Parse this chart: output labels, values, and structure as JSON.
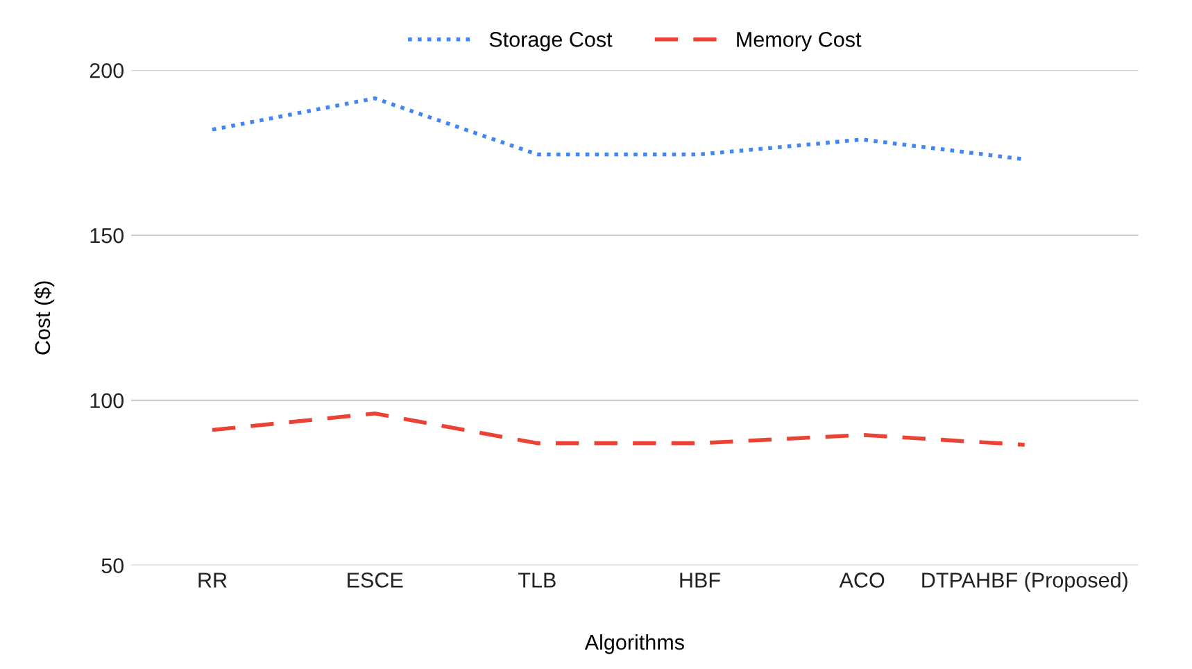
{
  "chart_data": {
    "type": "line",
    "xlabel": "Algorithms",
    "ylabel": "Cost ($)",
    "categories": [
      "RR",
      "ESCE",
      "TLB",
      "HBF",
      "ACO",
      "DTPAHBF (Proposed)"
    ],
    "series": [
      {
        "name": "Storage Cost",
        "color": "#4285f4",
        "line_style": "dotted",
        "values": [
          182,
          191.5,
          174.5,
          174.5,
          179,
          173
        ]
      },
      {
        "name": "Memory Cost",
        "color": "#ea4335",
        "line_style": "dashed",
        "values": [
          91,
          96,
          87,
          87,
          89.5,
          86.5
        ]
      }
    ],
    "ylim": [
      50,
      200
    ],
    "yticks": [
      50,
      100,
      150,
      200
    ],
    "grid": "y",
    "legend": "top",
    "marker": "none"
  }
}
